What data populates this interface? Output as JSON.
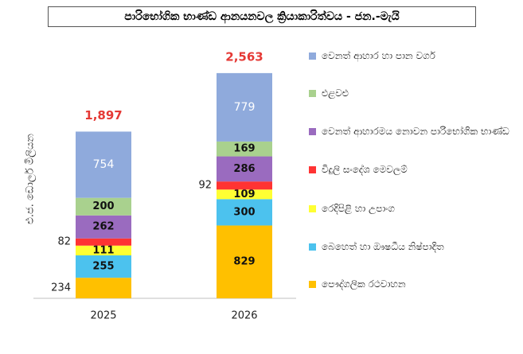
{
  "chart_data": {
    "type": "stacked_bar",
    "title": "පාරිභෝගික භාණ්ඩ ආනයනවල ක්‍රියාකාරිත්වය - ජන.-මැයි",
    "y_label": "එ.ජ. ඩොලර් මිලියන",
    "categories": [
      "2025",
      "2026"
    ],
    "series": [
      {
        "name": "පෞද්ගලික රථවාහන",
        "color": "#ffc000",
        "values": [
          234,
          829
        ]
      },
      {
        "name": "බෙහෙත් හා ඖෂධීය නිෂ්පාදිත",
        "color": "#4cc2ee",
        "values": [
          255,
          300
        ]
      },
      {
        "name": "රෙදිපිළි හා උපාංග",
        "color": "#ffff33",
        "values": [
          111,
          109
        ]
      },
      {
        "name": "විදුලි සංදේශ මෙවලම්",
        "color": "#ff3333",
        "values": [
          82,
          92
        ]
      },
      {
        "name": "වෙනත් ආහාරමය නොවන පාරිභෝගික භාණ්ඩ",
        "color": "#9a6bbf",
        "values": [
          262,
          286
        ]
      },
      {
        "name": "එළවළු",
        "color": "#a9d18e",
        "values": [
          200,
          169
        ]
      },
      {
        "name": "වෙනත් ආහාර හා පාන වර්ග",
        "color": "#8faadc",
        "values": [
          754,
          779
        ]
      }
    ],
    "totals": [
      1897,
      2563
    ],
    "totals_labels": [
      "1,897",
      "2,563"
    ],
    "totals_color": "#e53935"
  }
}
